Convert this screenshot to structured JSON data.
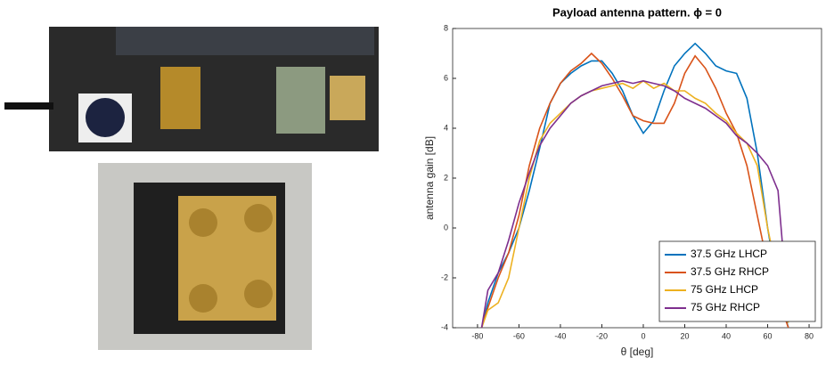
{
  "chart_data": {
    "type": "line",
    "title": "Payload antenna pattern. ϕ = 0",
    "x_label": "θ [deg]",
    "y_label": "antenna gain [dB]",
    "x": [
      -78,
      -75,
      -70,
      -65,
      -60,
      -55,
      -50,
      -45,
      -40,
      -35,
      -30,
      -25,
      -20,
      -15,
      -10,
      -5,
      0,
      5,
      10,
      15,
      20,
      25,
      30,
      35,
      40,
      45,
      50,
      55,
      60,
      65,
      70
    ],
    "series": [
      {
        "name": "37.5 GHz LHCP",
        "color": "#0072bd",
        "values": [
          -4,
          -3,
          -1.8,
          -1,
          0,
          1.5,
          3.2,
          5,
          5.8,
          6.2,
          6.5,
          6.7,
          6.7,
          6.2,
          5.5,
          4.5,
          3.8,
          4.3,
          5.5,
          6.5,
          7,
          7.4,
          7,
          6.5,
          6.3,
          6.2,
          5.2,
          3,
          0,
          -2.5,
          -4
        ]
      },
      {
        "name": "37.5 GHz RHCP",
        "color": "#d95319",
        "values": [
          -4,
          -3.2,
          -2,
          -1,
          0.5,
          2.5,
          4,
          5,
          5.8,
          6.3,
          6.6,
          7,
          6.6,
          6,
          5.3,
          4.5,
          4.3,
          4.2,
          4.2,
          5,
          6.2,
          6.9,
          6.4,
          5.6,
          4.6,
          3.8,
          2.5,
          0.5,
          -1.5,
          -2.8,
          -4
        ]
      },
      {
        "name": "75 GHz LHCP",
        "color": "#edb120",
        "values": [
          -4,
          -3.3,
          -3,
          -2,
          0,
          2,
          3.5,
          4.2,
          4.6,
          5,
          5.3,
          5.5,
          5.6,
          5.7,
          5.8,
          5.6,
          5.9,
          5.6,
          5.8,
          5.5,
          5.5,
          5.2,
          5,
          4.6,
          4.3,
          3.8,
          3.4,
          2.5,
          0,
          -2,
          -3.8
        ]
      },
      {
        "name": "75 GHz RHCP",
        "color": "#7e2f8e",
        "values": [
          -4,
          -2.5,
          -1.8,
          -0.5,
          1,
          2.2,
          3.3,
          4,
          4.5,
          5,
          5.3,
          5.5,
          5.7,
          5.8,
          5.9,
          5.8,
          5.9,
          5.8,
          5.7,
          5.5,
          5.2,
          5,
          4.8,
          4.5,
          4.2,
          3.7,
          3.4,
          3,
          2.5,
          1.5,
          -3.5
        ]
      }
    ],
    "xlim": [
      -92,
      86
    ],
    "xticks": [
      -80,
      -60,
      -40,
      -20,
      0,
      20,
      40,
      60,
      80
    ],
    "ylim": [
      -4,
      8
    ],
    "yticks": [
      -4,
      -2,
      0,
      2,
      4,
      6,
      8
    ],
    "legend": "lower right"
  }
}
